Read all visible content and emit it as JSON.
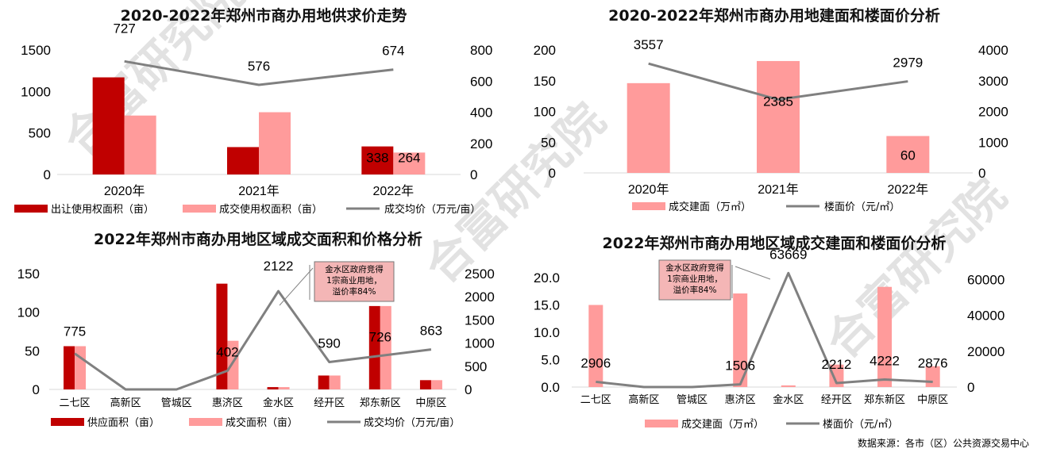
{
  "colors": {
    "dark": "#C00000",
    "light": "#FF9B9B",
    "line": "#808080",
    "axis": "#D9D9D9",
    "note_bg": "#F4B6B6",
    "watermark": "#CCCCCC"
  },
  "watermark": "合富研究院",
  "source": "数据来源：各市（区）公共资源交易中心",
  "chart_data": [
    {
      "type": "bar",
      "title": "2020-2022年郑州市商办用地供求价走势",
      "categories": [
        "2020年",
        "2021年",
        "2022年"
      ],
      "series": [
        {
          "name": "出让使用权面积（亩）",
          "kind": "bar",
          "axis": "left",
          "values": [
            1170,
            330,
            338
          ]
        },
        {
          "name": "成交使用权面积（亩）",
          "kind": "bar",
          "axis": "left",
          "values": [
            710,
            750,
            264
          ]
        },
        {
          "name": "成交均价（万元/亩）",
          "kind": "line",
          "axis": "right",
          "values": [
            727,
            576,
            674
          ]
        }
      ],
      "data_labels": {
        "line": [
          "727",
          "576",
          "674"
        ],
        "bars_2022": [
          "338",
          "264"
        ]
      },
      "ylim": [
        0,
        1500
      ],
      "yticks": [
        "0",
        "500",
        "1000",
        "1500"
      ],
      "ylim_right": [
        0,
        800
      ],
      "yticks_right": [
        "0",
        "200",
        "400",
        "600",
        "800"
      ],
      "legend": [
        "出让使用权面积（亩）",
        "成交使用权面积（亩）",
        "成交均价（万元/亩）"
      ],
      "legend_position": "bottom"
    },
    {
      "type": "bar",
      "title": "2020-2022年郑州市商办用地建面和楼面价分析",
      "categories": [
        "2020年",
        "2021年",
        "2022年"
      ],
      "series": [
        {
          "name": "成交建面（万㎡）",
          "kind": "bar",
          "axis": "left",
          "values": [
            146,
            182,
            60
          ]
        },
        {
          "name": "楼面价（元/㎡）",
          "kind": "line",
          "axis": "right",
          "values": [
            3557,
            2385,
            2979
          ]
        }
      ],
      "data_labels": {
        "line": [
          "3557",
          "2385",
          "2979"
        ],
        "bar_2022": "60"
      },
      "ylim": [
        0,
        200
      ],
      "yticks": [
        "0",
        "50",
        "100",
        "150",
        "200"
      ],
      "ylim_right": [
        0,
        4000
      ],
      "yticks_right": [
        "0",
        "1000",
        "2000",
        "3000",
        "4000"
      ],
      "legend": [
        "成交建面（万㎡）",
        "楼面价（元/㎡）"
      ],
      "legend_position": "bottom"
    },
    {
      "type": "bar",
      "title": "2022年郑州市商办用地区域成交面积和价格分析",
      "categories": [
        "二七区",
        "高新区",
        "管城区",
        "惠济区",
        "金水区",
        "经开区",
        "郑东新区",
        "中原区"
      ],
      "series": [
        {
          "name": "供应面积（亩）",
          "kind": "bar",
          "axis": "left",
          "values": [
            56,
            0,
            0,
            137,
            3,
            18,
            108,
            12
          ]
        },
        {
          "name": "成交面积（亩）",
          "kind": "bar",
          "axis": "left",
          "values": [
            56,
            0,
            0,
            63,
            3,
            18,
            108,
            12
          ]
        },
        {
          "name": "成交均价（万元/亩）",
          "kind": "line",
          "axis": "right",
          "values": [
            775,
            0,
            0,
            402,
            2122,
            590,
            726,
            863
          ]
        }
      ],
      "data_labels": {
        "line": [
          "775",
          "",
          "",
          "402",
          "2122",
          "590",
          "726",
          "863"
        ]
      },
      "ylim": [
        0,
        150
      ],
      "yticks": [
        "0",
        "50",
        "100",
        "150"
      ],
      "ylim_right": [
        0,
        2500
      ],
      "yticks_right": [
        "0",
        "500",
        "1000",
        "1500",
        "2000",
        "2500"
      ],
      "annotation": [
        "金水区政府竞得",
        "1宗商业用地，",
        "溢价率84%"
      ],
      "legend": [
        "供应面积（亩）",
        "成交面积（亩）",
        "成交均价（万元/亩）"
      ],
      "legend_position": "bottom"
    },
    {
      "type": "bar",
      "title": "2022年郑州市商办用地区域成交建面和楼面价分析",
      "categories": [
        "二七区",
        "高新区",
        "管城区",
        "惠济区",
        "金水区",
        "经开区",
        "郑东新区",
        "中原区"
      ],
      "series": [
        {
          "name": "成交建面（万㎡）",
          "kind": "bar",
          "axis": "left",
          "values": [
            15.0,
            0,
            0,
            17.1,
            0.3,
            4.1,
            18.3,
            3.8
          ]
        },
        {
          "name": "楼面价（元/㎡）",
          "kind": "line",
          "axis": "right",
          "values": [
            2906,
            0,
            0,
            1506,
            63669,
            2212,
            4222,
            2876
          ]
        }
      ],
      "data_labels": {
        "line": [
          "2906",
          "",
          "",
          "1506",
          "63669",
          "2212",
          "4222",
          "2876"
        ]
      },
      "ylim": [
        0,
        20
      ],
      "yticks": [
        "0.0",
        "5.0",
        "10.0",
        "15.0",
        "20.0"
      ],
      "ylim_right": [
        0,
        70000
      ],
      "yticks_right": [
        "0",
        "20000",
        "40000",
        "60000"
      ],
      "annotation": [
        "金水区政府竞得",
        "1宗商业用地，",
        "溢价率84%"
      ],
      "legend": [
        "成交建面（万㎡）",
        "楼面价（元/㎡）"
      ],
      "legend_position": "bottom"
    }
  ]
}
